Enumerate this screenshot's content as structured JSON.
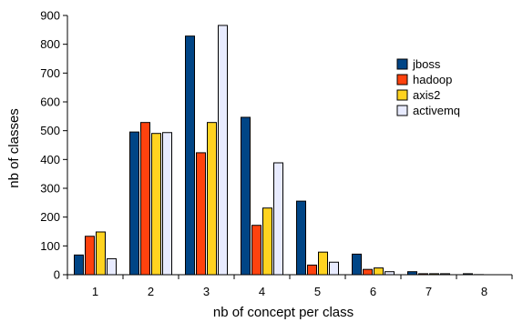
{
  "chart_data": {
    "type": "bar",
    "xlabel": "nb of concept per class",
    "ylabel": "nb of classes",
    "ylim": [
      0,
      900
    ],
    "yticks": [
      0,
      100,
      200,
      300,
      400,
      500,
      600,
      700,
      800,
      900
    ],
    "categories": [
      "1",
      "2",
      "3",
      "4",
      "5",
      "6",
      "7",
      "8"
    ],
    "series": [
      {
        "name": "jboss",
        "color": "#004586",
        "values": [
          70,
          497,
          830,
          548,
          257,
          73,
          12,
          5
        ]
      },
      {
        "name": "hadoop",
        "color": "#ff420e",
        "values": [
          135,
          530,
          425,
          173,
          35,
          20,
          5,
          2
        ]
      },
      {
        "name": "axis2",
        "color": "#ffd320",
        "values": [
          150,
          492,
          530,
          233,
          80,
          25,
          5,
          0
        ]
      },
      {
        "name": "activemq",
        "color": "#e8ebff",
        "values": [
          57,
          495,
          867,
          390,
          45,
          12,
          5,
          0
        ]
      }
    ],
    "grid": false,
    "legend_position": "right"
  }
}
